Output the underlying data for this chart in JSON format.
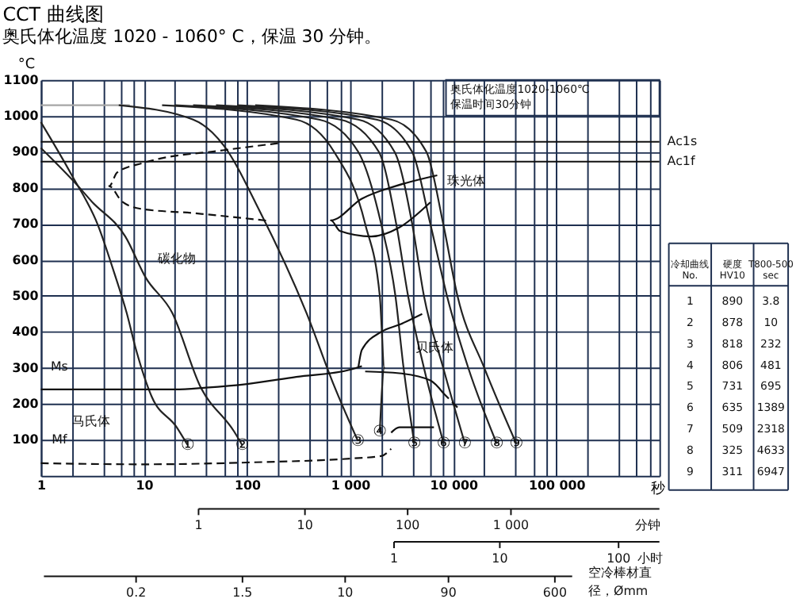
{
  "chart_data": {
    "type": "line",
    "title": "CCT 曲线图",
    "subtitle": "奥氏体化温度 1020 - 1060° C，保温 30 分钟。",
    "xlabel": "秒",
    "ylabel": "°C",
    "log": "x",
    "grid": true,
    "xlim": [
      1,
      1000000
    ],
    "ylim": [
      0,
      1100
    ],
    "xticks": [
      1,
      {
        "value": 2,
        "label": null
      },
      {
        "value": 4,
        "label": null
      },
      {
        "value": 6,
        "label": null
      },
      {
        "value": 8,
        "label": null
      },
      10,
      {
        "value": 20,
        "label": null
      },
      {
        "value": 40,
        "label": null
      },
      {
        "value": 60,
        "label": null
      },
      {
        "value": 80,
        "label": null
      },
      100,
      {
        "value": 200,
        "label": null
      },
      {
        "value": 400,
        "label": null
      },
      {
        "value": 600,
        "label": null
      },
      {
        "value": 800,
        "label": null
      },
      {
        "value": 1000,
        "label": "1 000"
      },
      {
        "value": 2000,
        "label": null
      },
      {
        "value": 4000,
        "label": null
      },
      {
        "value": 6000,
        "label": null
      },
      {
        "value": 8000,
        "label": null
      },
      {
        "value": 10000,
        "label": "10 000"
      },
      {
        "value": 20000,
        "label": null
      },
      {
        "value": 40000,
        "label": null
      },
      {
        "value": 60000,
        "label": null
      },
      {
        "value": 80000,
        "label": null
      },
      {
        "value": 100000,
        "label": "100 000"
      },
      {
        "value": 200000,
        "label": null
      },
      {
        "value": 400000,
        "label": null
      },
      {
        "value": 600000,
        "label": null
      },
      {
        "value": 800000,
        "label": null
      },
      {
        "value": 1000000,
        "label": null
      }
    ],
    "yticks": [
      100,
      200,
      300,
      400,
      500,
      600,
      700,
      800,
      900,
      1000,
      1100
    ],
    "ref_lines": [
      {
        "axis": "y",
        "value": 928,
        "label": "Ac1s"
      },
      {
        "axis": "y",
        "value": 873,
        "label": "Ac1f"
      }
    ],
    "series": [
      {
        "color": "#a6a6a6",
        "x": [
          1,
          7.3
        ],
        "values": [
          1030,
          1030
        ]
      },
      {
        "color": "#222222",
        "x": [
          1,
          2,
          3.6,
          5.1,
          6.8,
          8.4,
          11.9,
          20.8,
          26.6
        ],
        "values": [
          983,
          835,
          695,
          568,
          453,
          350,
          220,
          135,
          85
        ]
      },
      {
        "color": "#222222",
        "x": [
          1,
          2.3,
          3.1,
          6.6,
          10.4,
          18.8,
          35,
          75,
          90
        ],
        "values": [
          911,
          805,
          763,
          665,
          551,
          453,
          250,
          123,
          85
        ]
      },
      {
        "color": "#222222",
        "x": [
          5.7,
          30,
          59,
          132,
          377,
          700,
          1190
        ],
        "values": [
          1030,
          990,
          919,
          737,
          453,
          250,
          97
        ]
      },
      {
        "color": "#222222",
        "x": [
          15,
          300,
          700,
          1400,
          1940,
          2150,
          1940
        ],
        "values": [
          1030,
          990,
          900,
          700,
          500,
          300,
          123
        ]
      },
      {
        "color": "#222222",
        "x": [
          20,
          500,
          1200,
          2000,
          2750,
          3300,
          4200
        ],
        "values": [
          1030,
          990,
          900,
          700,
          500,
          300,
          89
        ]
      },
      {
        "color": "#222222",
        "x": [
          30,
          800,
          1900,
          2800,
          3650,
          5200,
          8100
        ],
        "values": [
          1030,
          990,
          900,
          700,
          500,
          300,
          89
        ]
      },
      {
        "color": "#222222",
        "x": [
          50,
          1200,
          2700,
          4000,
          5200,
          8000,
          13000
        ],
        "values": [
          1030,
          990,
          900,
          700,
          500,
          300,
          89
        ]
      },
      {
        "color": "#222222",
        "x": [
          80,
          1800,
          4000,
          6000,
          8700,
          14000,
          26500
        ],
        "values": [
          1030,
          990,
          900,
          700,
          500,
          300,
          89
        ]
      },
      {
        "color": "#222222",
        "x": [
          120,
          2500,
          5500,
          8000,
          11000,
          20000,
          41000
        ],
        "values": [
          1030,
          990,
          900,
          700,
          500,
          300,
          89
        ]
      },
      {
        "color": "#111111",
        "x": [
          1,
          20,
          40,
          100,
          300,
          1000,
          1300
        ],
        "values": [
          240,
          240,
          245,
          255,
          275,
          295,
          305
        ]
      },
      {
        "color": "#111111",
        "line_style": "dashed",
        "x": [
          1,
          10,
          100,
          1000,
          2000,
          2500
        ],
        "values": [
          35,
          32,
          37,
          48,
          55,
          75
        ]
      },
      {
        "color": "#111111",
        "line_style": "dashed",
        "x": [
          200,
          60,
          10,
          5.5,
          4.6,
          6.1,
          9.3,
          30,
          169
        ],
        "values": [
          924,
          905,
          870,
          843,
          805,
          763,
          742,
          730,
          708
        ]
      },
      {
        "color": "#111111",
        "x": [
          7000,
          2750,
          1300,
          650,
          800,
          1600,
          3000,
          6000
        ],
        "values": [
          835,
          805,
          770,
          710,
          680,
          665,
          690,
          760
        ]
      },
      {
        "color": "#111111",
        "x": [
          1200,
          1300,
          2000,
          3000,
          5000
        ],
        "values": [
          300,
          350,
          400,
          420,
          450
        ]
      },
      {
        "color": "#111111",
        "x": [
          1400,
          3000,
          6000,
          8000
        ],
        "values": [
          290,
          285,
          265,
          230
        ]
      },
      {
        "color": "#111111",
        "line_style": "dashed",
        "x": [
          8000,
          11000
        ],
        "values": [
          230,
          190
        ]
      },
      {
        "color": "#111111",
        "x": [
          2500,
          3000,
          6500
        ],
        "values": [
          120,
          135,
          135
        ]
      }
    ],
    "annotations": [
      {
        "text": "①",
        "x": 26.6,
        "y": 85
      },
      {
        "text": "②",
        "x": 90,
        "y": 85
      },
      {
        "text": "③",
        "x": 1190,
        "y": 97
      },
      {
        "text": "④",
        "x": 1940,
        "y": 123
      },
      {
        "text": "⑤",
        "x": 4200,
        "y": 89
      },
      {
        "text": "⑥",
        "x": 8100,
        "y": 89
      },
      {
        "text": "⑦",
        "x": 13000,
        "y": 89
      },
      {
        "text": "⑧",
        "x": 26500,
        "y": 89
      },
      {
        "text": "⑨",
        "x": 41000,
        "y": 89
      },
      "奥氏体化温度1020-1060℃",
      "保温时间30分钟",
      "碳化物",
      "珠光体",
      "贝氏体",
      "马氏体",
      "Ms",
      "Mf",
      "1",
      "10",
      "100",
      "1 000",
      "分钟",
      "1",
      "10",
      "100",
      "小时",
      "0.2",
      "1.5",
      "10",
      "90",
      "600",
      "空冷棒材直径，Ømm",
      "冷却曲线\nNo.",
      "硬度\nHV10",
      "T800-500\nsec",
      "1",
      "890",
      "3.8",
      "2",
      "878",
      "10",
      "3",
      "818",
      "232",
      "4",
      "806",
      "481",
      "5",
      "731",
      "695",
      "6",
      "635",
      "1389",
      "7",
      "509",
      "2318",
      "8",
      "325",
      "4633",
      "9",
      "311",
      "6947"
    ]
  }
}
